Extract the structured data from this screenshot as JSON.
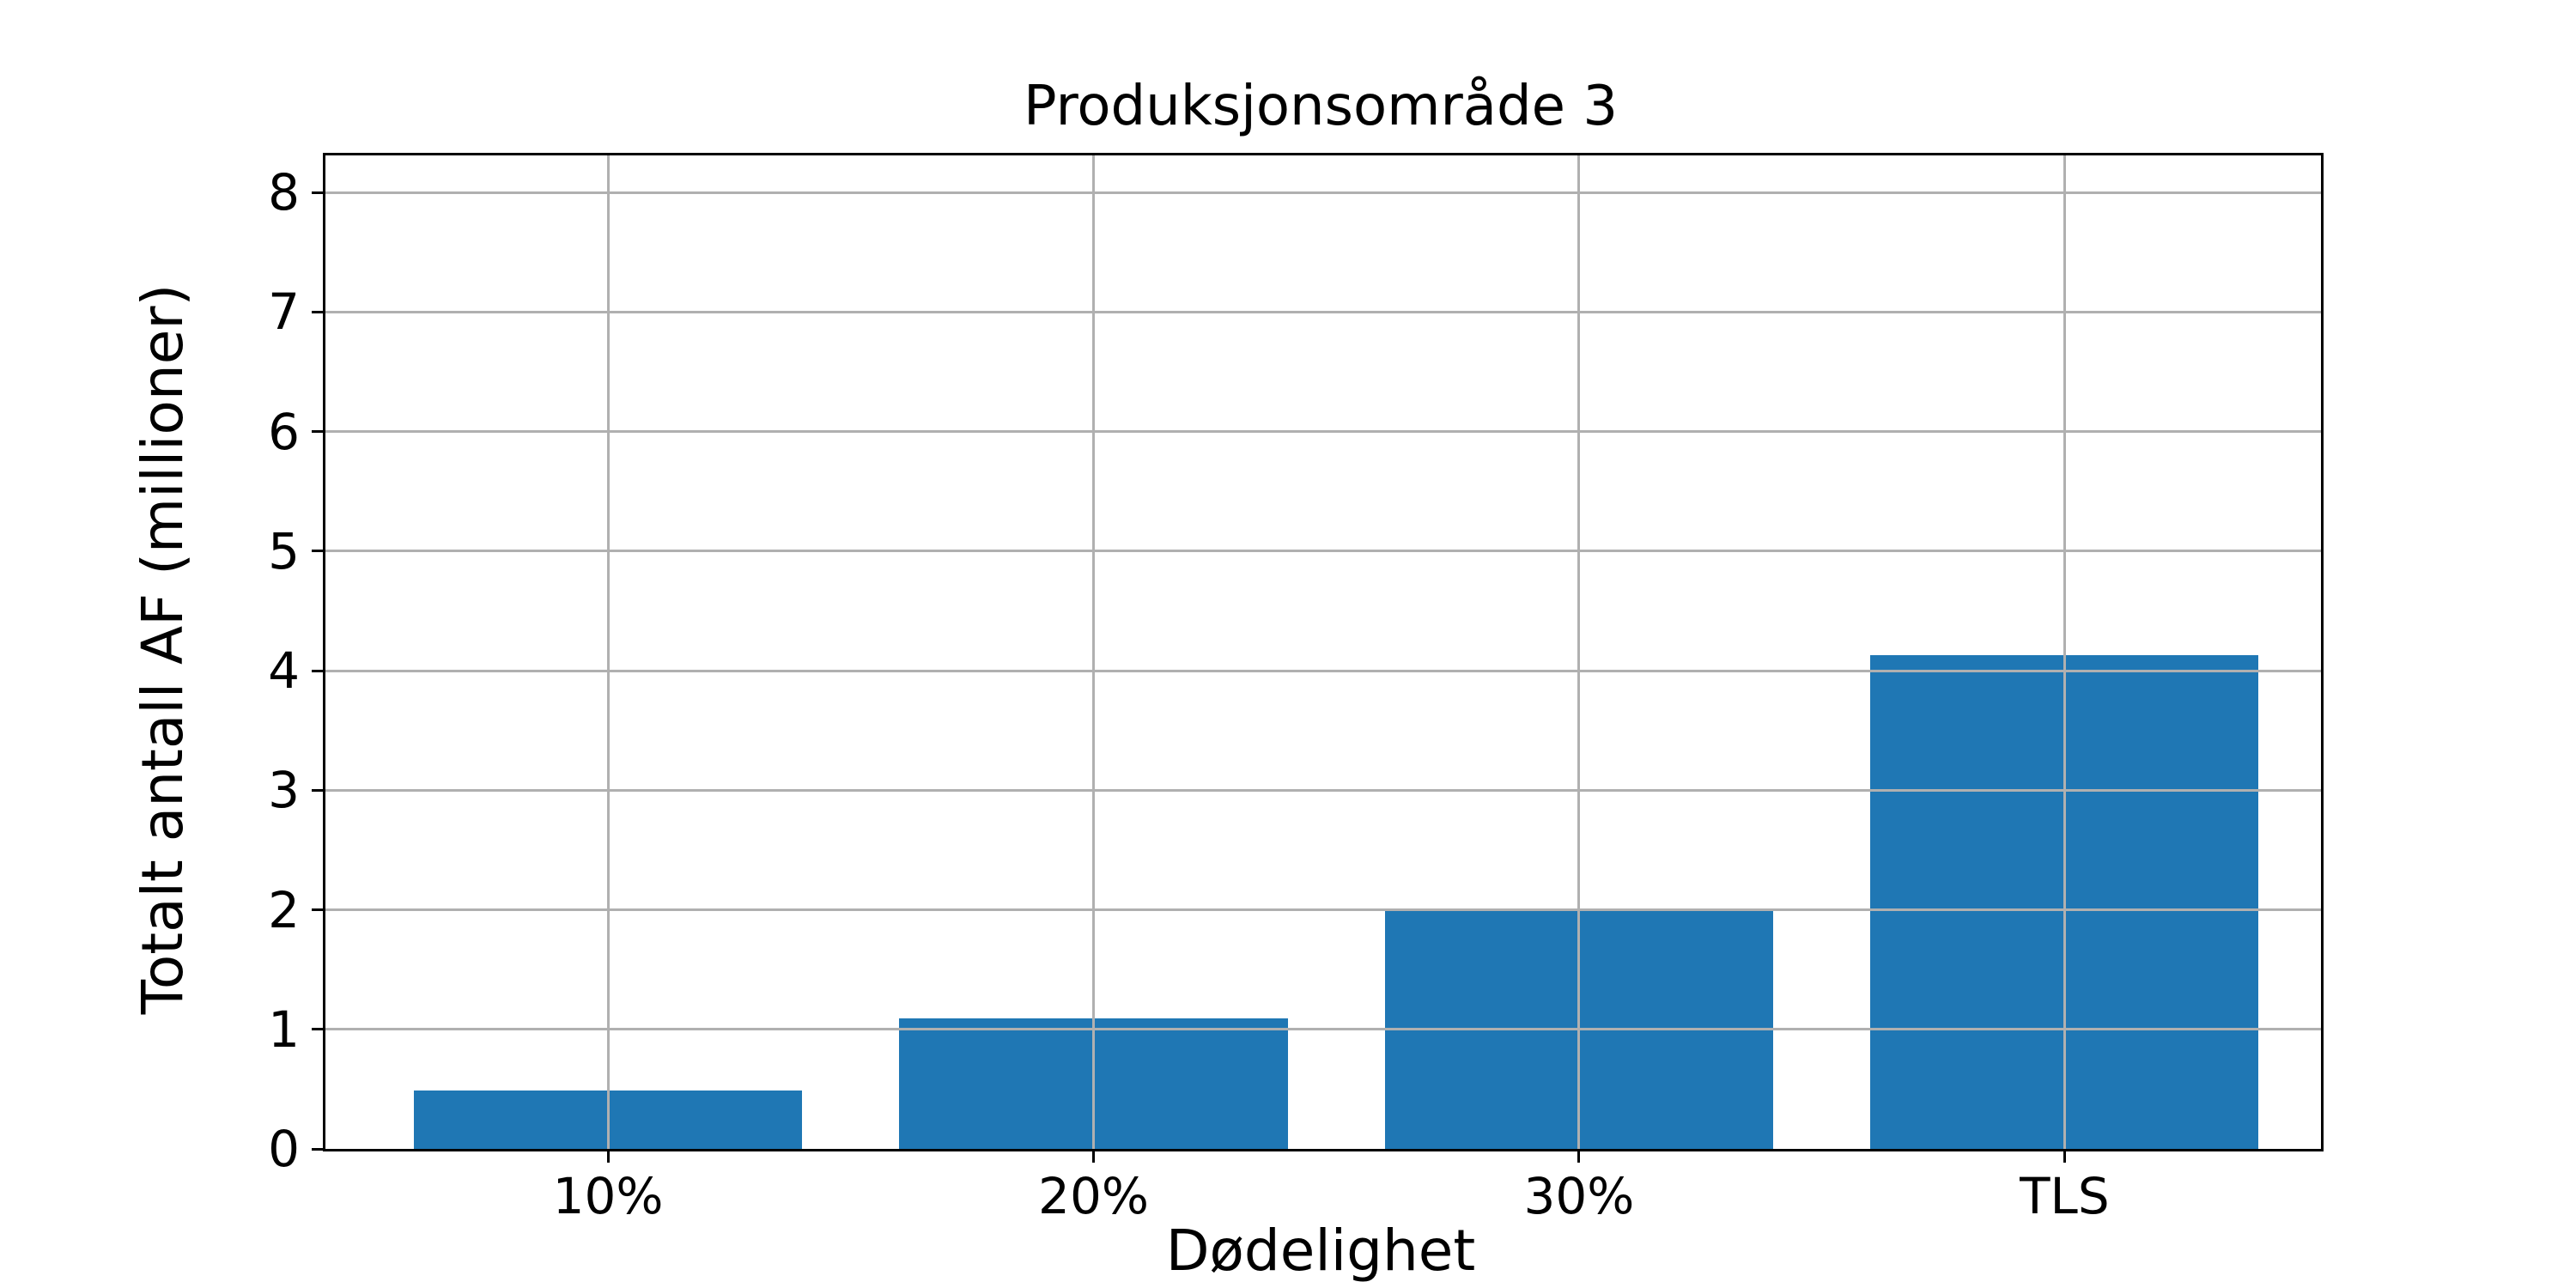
{
  "chart_data": {
    "type": "bar",
    "title": "Produksjonsområde 3",
    "xlabel": "Dødelighet",
    "ylabel": "Totalt antall AF (millioner)",
    "categories": [
      "10%",
      "20%",
      "30%",
      "TLS"
    ],
    "values": [
      0.49,
      1.09,
      2.0,
      4.13
    ],
    "ylim": [
      0,
      8.31
    ],
    "yticks": [
      0,
      1,
      2,
      3,
      4,
      5,
      6,
      7,
      8
    ],
    "bar_color": "#1f77b4",
    "grid": true,
    "grid_color": "#b0b0b0",
    "axis_color": "#000000",
    "background_color": "#ffffff",
    "legend_position": "none"
  }
}
